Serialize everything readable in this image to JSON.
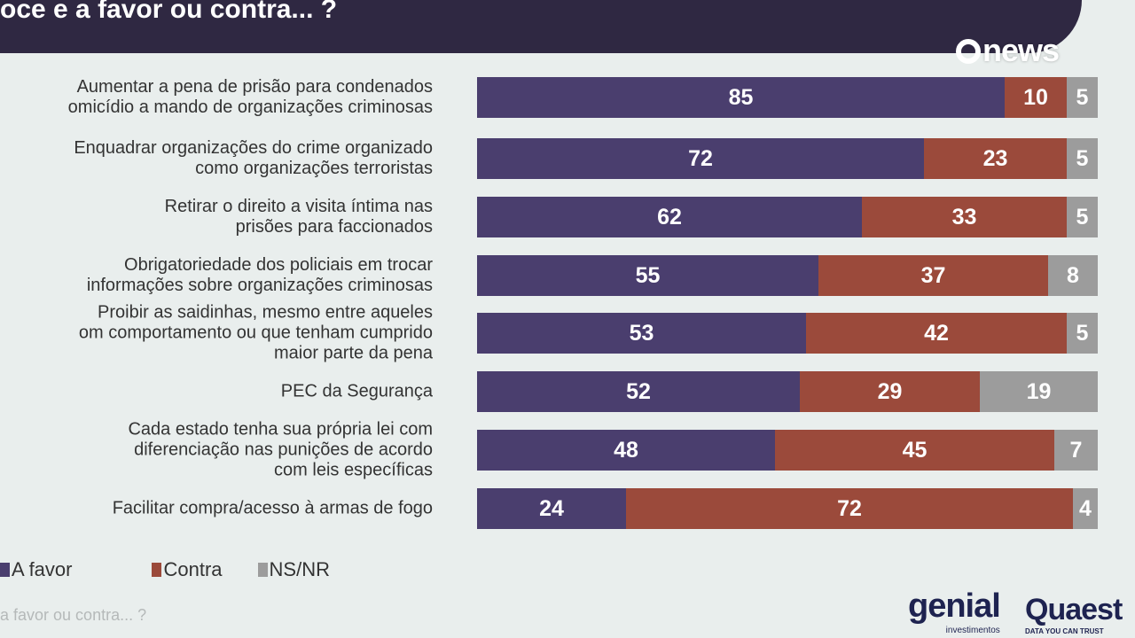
{
  "header": {
    "title": "oce e a favor ou contra... ?",
    "channel_logo": "news"
  },
  "colors": {
    "a_favor": "#4a3e6e",
    "contra": "#9b4a3b",
    "ns_nr": "#9c9c9c",
    "header": "#2f2842"
  },
  "chart_data": {
    "type": "bar",
    "orientation": "horizontal-stacked-100",
    "categories": [
      [
        "Aumentar a pena de prisão para condenados",
        "omicídio a mando de organizações criminosas"
      ],
      [
        "Enquadrar organizações do crime organizado",
        "como organizações terroristas"
      ],
      [
        "Retirar o direito a visita íntima nas",
        "prisões para faccionados"
      ],
      [
        "Obrigatoriedade dos policiais em trocar",
        "informações sobre organizações criminosas"
      ],
      [
        "Proibir as saidinhas, mesmo entre aqueles",
        "om comportamento ou que tenham cumprido",
        "maior parte da pena"
      ],
      [
        "PEC da Segurança"
      ],
      [
        "Cada estado tenha sua própria lei com",
        "diferenciação nas punições de acordo",
        "com leis específicas"
      ],
      [
        "Facilitar compra/acesso à armas de fogo"
      ]
    ],
    "series": [
      {
        "name": "A favor",
        "values": [
          85,
          72,
          62,
          55,
          53,
          52,
          48,
          24
        ]
      },
      {
        "name": "Contra",
        "values": [
          10,
          23,
          33,
          37,
          42,
          29,
          45,
          72
        ]
      },
      {
        "name": "NS/NR",
        "values": [
          5,
          5,
          5,
          8,
          5,
          19,
          7,
          4
        ]
      }
    ],
    "legend_position": "bottom-left",
    "grid": false
  },
  "footer": {
    "subtitle": "a favor ou contra... ?",
    "logo_genial": "genial",
    "logo_genial_sub": "investimentos",
    "logo_quaest": "Quaest",
    "logo_quaest_sub": "DATA YOU CAN TRUST"
  }
}
